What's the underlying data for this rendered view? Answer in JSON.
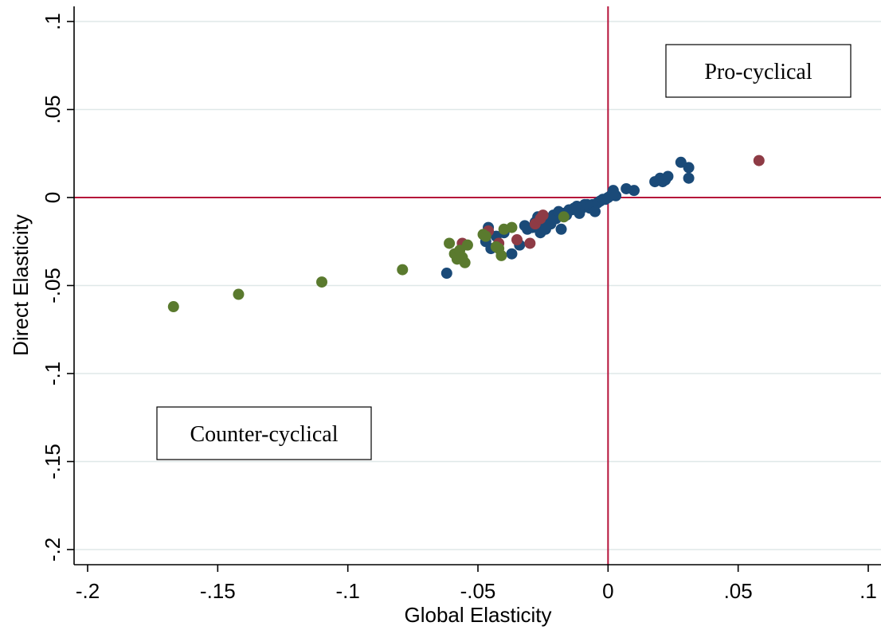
{
  "chart_data": {
    "type": "scatter",
    "xlabel": "Global Elasticity",
    "ylabel": "Direct Elasticity",
    "xlim": [
      -0.2,
      0.1
    ],
    "ylim": [
      -0.2,
      0.1
    ],
    "x_ticks": [
      {
        "value": -0.2,
        "label": "-.2"
      },
      {
        "value": -0.15,
        "label": "-.15"
      },
      {
        "value": -0.1,
        "label": "-.1"
      },
      {
        "value": -0.05,
        "label": "-.05"
      },
      {
        "value": 0,
        "label": "0"
      },
      {
        "value": 0.05,
        "label": ".05"
      },
      {
        "value": 0.1,
        "label": ".1"
      }
    ],
    "y_ticks": [
      {
        "value": -0.2,
        "label": "-.2"
      },
      {
        "value": -0.15,
        "label": "-.15"
      },
      {
        "value": -0.1,
        "label": "-.1"
      },
      {
        "value": -0.05,
        "label": "-.05"
      },
      {
        "value": 0,
        "label": "0"
      },
      {
        "value": 0.05,
        "label": ".05"
      },
      {
        "value": 0.1,
        "label": ".1"
      }
    ],
    "grid": "horizontal",
    "reference_lines": {
      "x": 0,
      "y": 0,
      "color": "#b5133a"
    },
    "annotations": [
      {
        "text": "Pro-cyclical"
      },
      {
        "text": "Counter-cyclical"
      }
    ],
    "series": [
      {
        "color": "#1a4a78",
        "points": [
          [
            -0.062,
            -0.043
          ],
          [
            -0.047,
            -0.025
          ],
          [
            -0.046,
            -0.017
          ],
          [
            -0.045,
            -0.029
          ],
          [
            -0.043,
            -0.022
          ],
          [
            -0.04,
            -0.02
          ],
          [
            -0.037,
            -0.032
          ],
          [
            -0.034,
            -0.027
          ],
          [
            -0.032,
            -0.016
          ],
          [
            -0.031,
            -0.018
          ],
          [
            -0.029,
            -0.017
          ],
          [
            -0.028,
            -0.014
          ],
          [
            -0.027,
            -0.011
          ],
          [
            -0.026,
            -0.016
          ],
          [
            -0.026,
            -0.02
          ],
          [
            -0.025,
            -0.014
          ],
          [
            -0.024,
            -0.018
          ],
          [
            -0.023,
            -0.013
          ],
          [
            -0.022,
            -0.015
          ],
          [
            -0.021,
            -0.01
          ],
          [
            -0.02,
            -0.012
          ],
          [
            -0.019,
            -0.008
          ],
          [
            -0.018,
            -0.018
          ],
          [
            -0.017,
            -0.009
          ],
          [
            -0.016,
            -0.01
          ],
          [
            -0.015,
            -0.007
          ],
          [
            -0.014,
            -0.007
          ],
          [
            -0.013,
            -0.006
          ],
          [
            -0.012,
            -0.005
          ],
          [
            -0.011,
            -0.009
          ],
          [
            -0.01,
            -0.006
          ],
          [
            -0.009,
            -0.004
          ],
          [
            -0.008,
            -0.004
          ],
          [
            -0.007,
            -0.006
          ],
          [
            -0.006,
            -0.004
          ],
          [
            -0.005,
            -0.008
          ],
          [
            -0.004,
            -0.003
          ],
          [
            -0.003,
            -0.002
          ],
          [
            -0.002,
            -0.001
          ],
          [
            -0.001,
            -0.001
          ],
          [
            0.0,
            0.0
          ],
          [
            0.001,
            0.001
          ],
          [
            0.002,
            0.004
          ],
          [
            0.003,
            0.001
          ],
          [
            0.007,
            0.005
          ],
          [
            0.01,
            0.004
          ],
          [
            0.018,
            0.009
          ],
          [
            0.02,
            0.011
          ],
          [
            0.021,
            0.009
          ],
          [
            0.022,
            0.01
          ],
          [
            0.023,
            0.012
          ],
          [
            0.028,
            0.02
          ],
          [
            0.031,
            0.017
          ],
          [
            0.031,
            0.011
          ]
        ]
      },
      {
        "color": "#8e3b45",
        "points": [
          [
            -0.056,
            -0.026
          ],
          [
            -0.046,
            -0.019
          ],
          [
            -0.042,
            -0.026
          ],
          [
            -0.035,
            -0.024
          ],
          [
            -0.03,
            -0.026
          ],
          [
            -0.028,
            -0.015
          ],
          [
            -0.026,
            -0.012
          ],
          [
            -0.025,
            -0.01
          ],
          [
            0.058,
            0.021
          ]
        ]
      },
      {
        "color": "#5a7a2e",
        "points": [
          [
            -0.167,
            -0.062
          ],
          [
            -0.142,
            -0.055
          ],
          [
            -0.11,
            -0.048
          ],
          [
            -0.079,
            -0.041
          ],
          [
            -0.061,
            -0.026
          ],
          [
            -0.059,
            -0.032
          ],
          [
            -0.058,
            -0.035
          ],
          [
            -0.057,
            -0.03
          ],
          [
            -0.056,
            -0.034
          ],
          [
            -0.055,
            -0.037
          ],
          [
            -0.054,
            -0.027
          ],
          [
            -0.048,
            -0.021
          ],
          [
            -0.047,
            -0.022
          ],
          [
            -0.043,
            -0.028
          ],
          [
            -0.042,
            -0.029
          ],
          [
            -0.041,
            -0.033
          ],
          [
            -0.04,
            -0.018
          ],
          [
            -0.037,
            -0.017
          ],
          [
            -0.017,
            -0.011
          ]
        ]
      }
    ]
  }
}
